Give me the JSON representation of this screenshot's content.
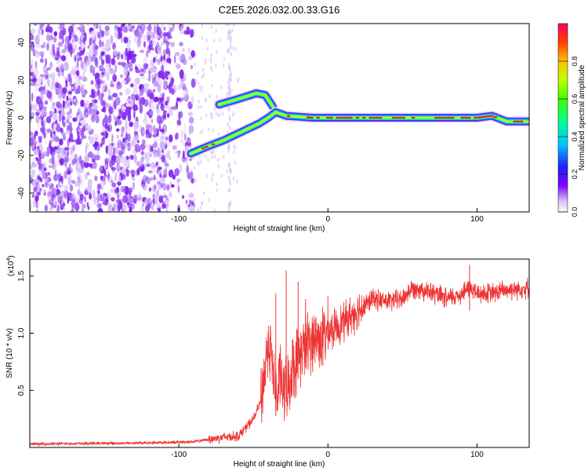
{
  "title": "C2E5.2026.032.00.33.G16",
  "chart_data": [
    {
      "type": "heatmap",
      "name": "spectrogram",
      "xlabel": "Height of straight line (km)",
      "ylabel": "Frequency (Hz)",
      "xlim": [
        -200,
        135
      ],
      "ylim": [
        -50,
        50
      ],
      "x_ticks": [
        -100,
        0,
        100
      ],
      "y_ticks": [
        -40,
        -20,
        0,
        20,
        40
      ],
      "noise_region_x": [
        -200,
        -90
      ],
      "noise_streak_x": [
        -67,
        -65
      ],
      "signal_track": [
        {
          "x": -92,
          "f": -19
        },
        {
          "x": -80,
          "f": -15
        },
        {
          "x": -70,
          "f": -12
        },
        {
          "x": -62,
          "f": -9
        },
        {
          "x": -54,
          "f": -6
        },
        {
          "x": -46,
          "f": -3
        },
        {
          "x": -40,
          "f": 0
        },
        {
          "x": -35,
          "f": 3
        },
        {
          "x": -28,
          "f": 1
        },
        {
          "x": -10,
          "f": 0
        },
        {
          "x": 40,
          "f": 0
        },
        {
          "x": 100,
          "f": 0
        },
        {
          "x": 110,
          "f": 1
        },
        {
          "x": 120,
          "f": -2
        },
        {
          "x": 135,
          "f": -2
        }
      ],
      "secondary_track": [
        {
          "x": -73,
          "f": 7
        },
        {
          "x": -60,
          "f": 10
        },
        {
          "x": -48,
          "f": 13
        },
        {
          "x": -42,
          "f": 12
        },
        {
          "x": -37,
          "f": 6
        }
      ]
    },
    {
      "type": "line",
      "name": "snr",
      "xlabel": "Height of straight line (km)",
      "ylabel": "SNR (10 * v/v)",
      "scale_label": "(x10",
      "scale_exponent": "4",
      "scale_close": ")",
      "xlim": [
        -200,
        135
      ],
      "ylim": [
        0,
        1.65
      ],
      "x_ticks": [
        -100,
        0,
        100
      ],
      "y_ticks": [
        0.5,
        1.0,
        1.5
      ],
      "y_tick_labels": [
        "0.5",
        "1.0",
        "1.5"
      ],
      "series": [
        {
          "name": "SNR",
          "color": "#ee3333",
          "x": [
            -200,
            -120,
            -90,
            -80,
            -70,
            -60,
            -50,
            -45,
            -42,
            -40,
            -38,
            -36,
            -34,
            -32,
            -30,
            -28,
            -26,
            -24,
            -22,
            -20,
            -15,
            -10,
            -5,
            0,
            5,
            10,
            15,
            20,
            25,
            30,
            40,
            50,
            55,
            60,
            70,
            80,
            90,
            95,
            100,
            110,
            120,
            135
          ],
          "y": [
            0.03,
            0.04,
            0.05,
            0.07,
            0.09,
            0.1,
            0.25,
            0.4,
            0.7,
            0.95,
            0.8,
            0.55,
            0.4,
            0.7,
            0.45,
            0.6,
            0.5,
            0.75,
            0.7,
            0.8,
            0.9,
            0.95,
            0.95,
            1.0,
            1.05,
            1.1,
            1.15,
            1.2,
            1.25,
            1.3,
            1.28,
            1.3,
            1.38,
            1.4,
            1.35,
            1.3,
            1.35,
            1.4,
            1.35,
            1.35,
            1.38,
            1.4
          ]
        }
      ],
      "spikes": [
        {
          "x": -35,
          "y": 1.35
        },
        {
          "x": -28,
          "y": 1.55
        },
        {
          "x": -20,
          "y": 1.45
        },
        {
          "x": -15,
          "y": 1.3
        },
        {
          "x": 95,
          "y": 1.6
        }
      ]
    }
  ],
  "colorbar": {
    "label": "Normalized spectral amplitude",
    "range": [
      0,
      1
    ],
    "ticks": [
      0.0,
      0.2,
      0.4,
      0.6,
      0.8
    ],
    "tick_labels": [
      "0.0",
      "0.2",
      "0.4",
      "0.6",
      "0.8"
    ]
  }
}
